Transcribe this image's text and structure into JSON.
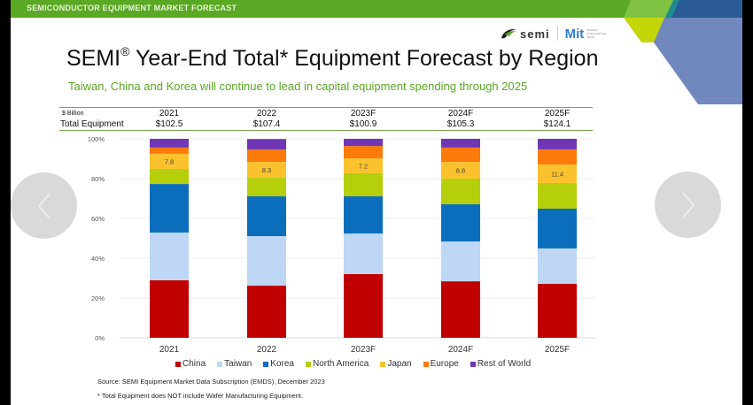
{
  "header": {
    "banner": "SEMICONDUCTOR EQUIPMENT MARKET FORECAST",
    "logo_semi": "semi",
    "logo_mit": "Mit",
    "logo_mit_sub": "MARKET INTELLIGENCE TEAM"
  },
  "title_main": "SEMI",
  "title_reg": "®",
  "title_rest": " Year-End Total* Equipment Forecast by Region",
  "subtitle": "Taiwan, China and Korea will continue to lead in capital equipment spending through 2025",
  "table": {
    "unit_label": "$ Billion",
    "row_label": "Total Equipment",
    "years": [
      "2021",
      "2022",
      "2023F",
      "2024F",
      "2025F"
    ],
    "totals": [
      "$102.5",
      "$107.4",
      "$100.9",
      "$105.3",
      "$124.1"
    ]
  },
  "colors": {
    "China": "#c00000",
    "Taiwan": "#bdd7f5",
    "Korea": "#0a6ebd",
    "North America": "#b5cf0a",
    "Japan": "#fcc22e",
    "Europe": "#fb7a0a",
    "Rest of World": "#7036b5"
  },
  "chart_data": {
    "type": "bar",
    "stacked": true,
    "percent": true,
    "categories": [
      "2021",
      "2022",
      "2023F",
      "2024F",
      "2025F"
    ],
    "series": [
      {
        "name": "China",
        "values": [
          28.9,
          26.2,
          32.0,
          28.4,
          27.1
        ]
      },
      {
        "name": "Taiwan",
        "values": [
          24.0,
          24.9,
          20.4,
          20.0,
          17.8
        ]
      },
      {
        "name": "Korea",
        "values": [
          24.4,
          20.0,
          18.7,
          18.7,
          20.0
        ]
      },
      {
        "name": "North America",
        "values": [
          7.6,
          9.3,
          11.6,
          12.9,
          12.9
        ]
      },
      {
        "name": "Japan",
        "values": [
          7.6,
          8.0,
          7.5,
          8.4,
          9.3
        ]
      },
      {
        "name": "Europe",
        "values": [
          3.1,
          6.2,
          6.2,
          7.2,
          7.6
        ]
      },
      {
        "name": "Rest of World",
        "values": [
          4.4,
          5.3,
          3.6,
          4.4,
          5.3
        ]
      }
    ],
    "data_labels": {
      "series": "Japan",
      "values": [
        "7.8",
        "8.3",
        "7.2",
        "8.8",
        "11.4"
      ]
    },
    "yticks": [
      "0%",
      "20%",
      "40%",
      "60%",
      "80%",
      "100%"
    ],
    "ylim": [
      0,
      100
    ],
    "grid": true,
    "legend": "bottom",
    "title": "",
    "xlabel": "",
    "ylabel": ""
  },
  "legend_items": [
    "China",
    "Taiwan",
    "Korea",
    "North America",
    "Japan",
    "Europe",
    "Rest of World"
  ],
  "source": "Source:  SEMI Equipment Market Data Subscription (EMDS), December 2023",
  "footnote": "* Total Equipment does NOT include Wafer Manufacturing Equipment.",
  "nav": {
    "prev": "previous-slide",
    "next": "next-slide"
  }
}
